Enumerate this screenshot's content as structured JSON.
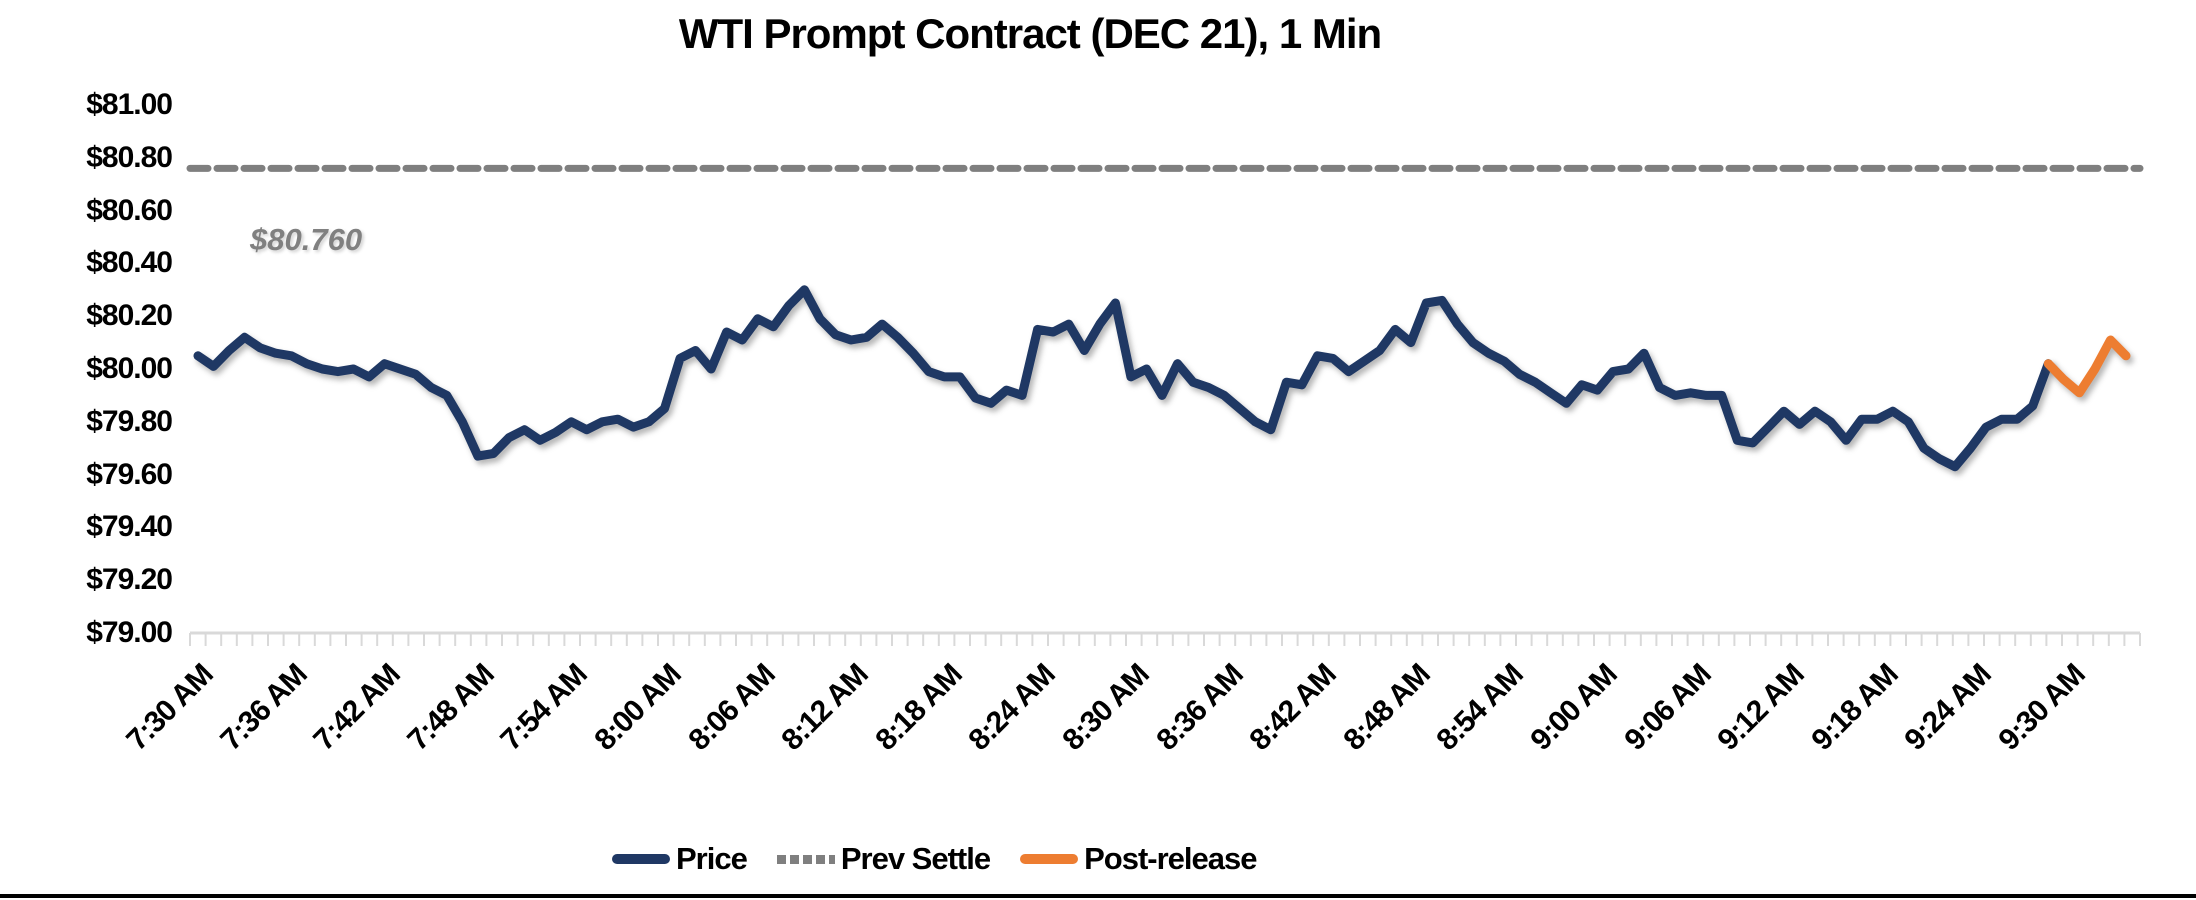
{
  "title": "WTI Prompt Contract (DEC 21), 1 Min",
  "annotation": {
    "label": "$80.760"
  },
  "legend": [
    {
      "label": "Price",
      "swatch": "solid-navy-line"
    },
    {
      "label": "Prev Settle",
      "swatch": "dashed-gray-line"
    },
    {
      "label": "Post-release",
      "swatch": "solid-orange-line"
    }
  ],
  "colors": {
    "price": "#1f3864",
    "post_release": "#ed7d31",
    "prev_settle": "#7f7f7f",
    "axis": "#d9d9d9",
    "annotation_text": "#808080",
    "text": "#000000"
  },
  "chart_data": {
    "type": "line",
    "title": "WTI Prompt Contract (DEC 21), 1 Min",
    "xlabel": "",
    "ylabel": "",
    "ylim": [
      79.0,
      81.0
    ],
    "ytick_step": 0.2,
    "ytick_labels": [
      "$81.00",
      "$80.80",
      "$80.60",
      "$80.40",
      "$80.20",
      "$80.00",
      "$79.80",
      "$79.60",
      "$79.40",
      "$79.20",
      "$79.00"
    ],
    "xtick_labels": [
      "7:30 AM",
      "7:36 AM",
      "7:42 AM",
      "7:48 AM",
      "7:54 AM",
      "8:00 AM",
      "8:06 AM",
      "8:12 AM",
      "8:18 AM",
      "8:24 AM",
      "8:30 AM",
      "8:36 AM",
      "8:42 AM",
      "8:48 AM",
      "8:54 AM",
      "9:00 AM",
      "9:06 AM",
      "9:12 AM",
      "9:18 AM",
      "9:24 AM",
      "9:30 AM"
    ],
    "x_interval_minutes": 1,
    "x_label_every_n_points": 6,
    "grid": false,
    "legend_position": "bottom",
    "prev_settle_value": 80.76,
    "post_release_start_index": 119,
    "series": [
      {
        "name": "Price",
        "values": [
          80.05,
          80.01,
          80.07,
          80.12,
          80.08,
          80.06,
          80.05,
          80.02,
          80.0,
          79.99,
          80.0,
          79.97,
          80.02,
          80.0,
          79.98,
          79.93,
          79.9,
          79.8,
          79.67,
          79.68,
          79.74,
          79.77,
          79.73,
          79.76,
          79.8,
          79.77,
          79.8,
          79.81,
          79.78,
          79.8,
          79.85,
          80.04,
          80.07,
          80.0,
          80.14,
          80.11,
          80.19,
          80.16,
          80.24,
          80.3,
          80.19,
          80.13,
          80.11,
          80.12,
          80.17,
          80.12,
          80.06,
          79.99,
          79.97,
          79.97,
          79.89,
          79.87,
          79.92,
          79.9,
          80.15,
          80.14,
          80.17,
          80.07,
          80.17,
          80.25,
          79.97,
          80.0,
          79.9,
          80.02,
          79.95,
          79.93,
          79.9,
          79.85,
          79.8,
          79.77,
          79.95,
          79.94,
          80.05,
          80.04,
          79.99,
          80.03,
          80.07,
          80.15,
          80.1,
          80.25,
          80.26,
          80.17,
          80.1,
          80.06,
          80.03,
          79.98,
          79.95,
          79.91,
          79.87,
          79.94,
          79.92,
          79.99,
          80.0,
          80.06,
          79.93,
          79.9,
          79.91,
          79.9,
          79.9,
          79.73,
          79.72,
          79.78,
          79.84,
          79.79,
          79.84,
          79.8,
          79.73,
          79.81,
          79.81,
          79.84,
          79.8,
          79.7,
          79.66,
          79.63,
          79.7,
          79.78,
          79.81,
          79.81,
          79.86,
          80.02,
          79.96,
          79.91,
          80.0,
          80.11,
          80.05
        ]
      },
      {
        "name": "Prev Settle",
        "style": "dashed",
        "constant_value": 80.76
      },
      {
        "name": "Post-release",
        "note": "orange highlighted tail of Price series from post_release_start_index to end"
      }
    ]
  }
}
